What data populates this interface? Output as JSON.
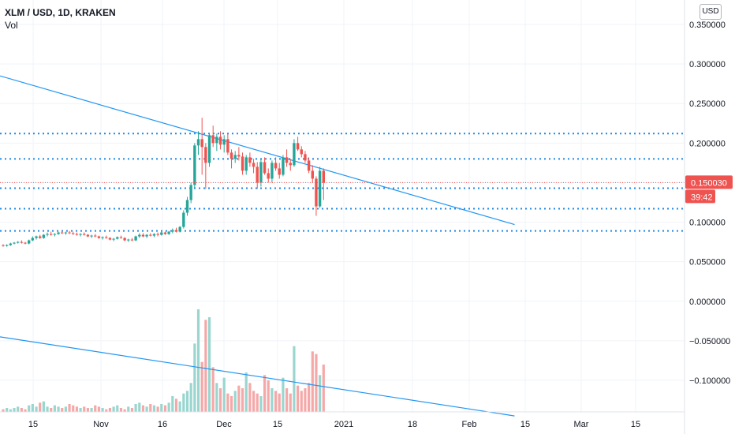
{
  "header": {
    "symbol_line": "XLM / USD, 1D, KRAKEN",
    "volume_label": "Vol",
    "currency": "USD"
  },
  "price_tag": {
    "price": "0.150030",
    "countdown": "39:42",
    "color": "#ef5350"
  },
  "colors": {
    "up": "#26a69a",
    "down": "#ef5350",
    "vol_up": "#9ad6cf",
    "vol_down": "#f4a9a8",
    "trendline": "#2196f3",
    "level_line": "#1e88e5",
    "grid": "#f0f3fa"
  },
  "chart_data": {
    "type": "candlestick",
    "title": "XLM / USD, 1D, KRAKEN",
    "y_axis": {
      "ticks": [
        "0.350000",
        "0.300000",
        "0.250000",
        "0.200000",
        "0.150000",
        "0.100000",
        "0.050000",
        "0.000000",
        "−0.050000",
        "−0.100000"
      ],
      "tick_values": [
        0.35,
        0.3,
        0.25,
        0.2,
        0.15,
        0.1,
        0.05,
        0.0,
        -0.05,
        -0.1
      ],
      "ylim": [
        -0.145,
        0.37
      ]
    },
    "x_axis": {
      "ticks": [
        "15",
        "Nov",
        "16",
        "Dec",
        "15",
        "2021",
        "18",
        "Feb",
        "15",
        "Mar",
        "15"
      ]
    },
    "series": {
      "candles_ohlc": [
        [
          0.071,
          0.072,
          0.069,
          0.07
        ],
        [
          0.07,
          0.072,
          0.069,
          0.071
        ],
        [
          0.071,
          0.074,
          0.07,
          0.073
        ],
        [
          0.073,
          0.075,
          0.072,
          0.074
        ],
        [
          0.074,
          0.076,
          0.073,
          0.075
        ],
        [
          0.075,
          0.077,
          0.073,
          0.074
        ],
        [
          0.074,
          0.075,
          0.072,
          0.073
        ],
        [
          0.073,
          0.078,
          0.072,
          0.077
        ],
        [
          0.077,
          0.082,
          0.076,
          0.08
        ],
        [
          0.08,
          0.083,
          0.078,
          0.082
        ],
        [
          0.082,
          0.084,
          0.079,
          0.08
        ],
        [
          0.08,
          0.085,
          0.079,
          0.084
        ],
        [
          0.084,
          0.087,
          0.082,
          0.085
        ],
        [
          0.085,
          0.088,
          0.083,
          0.084
        ],
        [
          0.084,
          0.086,
          0.082,
          0.085
        ],
        [
          0.085,
          0.088,
          0.084,
          0.087
        ],
        [
          0.087,
          0.089,
          0.085,
          0.086
        ],
        [
          0.086,
          0.088,
          0.084,
          0.087
        ],
        [
          0.087,
          0.089,
          0.085,
          0.086
        ],
        [
          0.086,
          0.088,
          0.084,
          0.085
        ],
        [
          0.085,
          0.087,
          0.083,
          0.084
        ],
        [
          0.084,
          0.086,
          0.082,
          0.085
        ],
        [
          0.085,
          0.087,
          0.083,
          0.084
        ],
        [
          0.084,
          0.085,
          0.081,
          0.082
        ],
        [
          0.082,
          0.084,
          0.08,
          0.083
        ],
        [
          0.083,
          0.085,
          0.081,
          0.082
        ],
        [
          0.082,
          0.083,
          0.079,
          0.08
        ],
        [
          0.08,
          0.082,
          0.078,
          0.081
        ],
        [
          0.081,
          0.083,
          0.079,
          0.08
        ],
        [
          0.08,
          0.081,
          0.077,
          0.078
        ],
        [
          0.078,
          0.08,
          0.076,
          0.079
        ],
        [
          0.079,
          0.082,
          0.078,
          0.081
        ],
        [
          0.081,
          0.083,
          0.079,
          0.08
        ],
        [
          0.08,
          0.081,
          0.076,
          0.077
        ],
        [
          0.077,
          0.079,
          0.075,
          0.078
        ],
        [
          0.078,
          0.08,
          0.076,
          0.077
        ],
        [
          0.077,
          0.083,
          0.076,
          0.082
        ],
        [
          0.082,
          0.086,
          0.08,
          0.084
        ],
        [
          0.084,
          0.086,
          0.081,
          0.082
        ],
        [
          0.082,
          0.085,
          0.08,
          0.084
        ],
        [
          0.084,
          0.086,
          0.082,
          0.083
        ],
        [
          0.083,
          0.086,
          0.081,
          0.085
        ],
        [
          0.085,
          0.087,
          0.082,
          0.084
        ],
        [
          0.084,
          0.088,
          0.083,
          0.087
        ],
        [
          0.087,
          0.088,
          0.084,
          0.085
        ],
        [
          0.085,
          0.089,
          0.084,
          0.088
        ],
        [
          0.088,
          0.092,
          0.086,
          0.09
        ],
        [
          0.09,
          0.093,
          0.087,
          0.088
        ],
        [
          0.088,
          0.095,
          0.087,
          0.094
        ],
        [
          0.094,
          0.115,
          0.092,
          0.112
        ],
        [
          0.112,
          0.132,
          0.108,
          0.128
        ],
        [
          0.128,
          0.15,
          0.124,
          0.147
        ],
        [
          0.147,
          0.2,
          0.143,
          0.197
        ],
        [
          0.197,
          0.215,
          0.185,
          0.205
        ],
        [
          0.205,
          0.232,
          0.16,
          0.195
        ],
        [
          0.195,
          0.2,
          0.142,
          0.175
        ],
        [
          0.175,
          0.212,
          0.17,
          0.21
        ],
        [
          0.21,
          0.222,
          0.195,
          0.2
        ],
        [
          0.2,
          0.212,
          0.19,
          0.208
        ],
        [
          0.208,
          0.215,
          0.192,
          0.198
        ],
        [
          0.198,
          0.21,
          0.188,
          0.205
        ],
        [
          0.205,
          0.212,
          0.185,
          0.188
        ],
        [
          0.188,
          0.192,
          0.168,
          0.18
        ],
        [
          0.18,
          0.19,
          0.175,
          0.185
        ],
        [
          0.185,
          0.195,
          0.178,
          0.183
        ],
        [
          0.183,
          0.188,
          0.16,
          0.165
        ],
        [
          0.165,
          0.185,
          0.16,
          0.182
        ],
        [
          0.182,
          0.188,
          0.17,
          0.175
        ],
        [
          0.175,
          0.18,
          0.162,
          0.17
        ],
        [
          0.17,
          0.176,
          0.142,
          0.15
        ],
        [
          0.15,
          0.18,
          0.145,
          0.176
        ],
        [
          0.176,
          0.182,
          0.16,
          0.162
        ],
        [
          0.162,
          0.168,
          0.15,
          0.155
        ],
        [
          0.155,
          0.178,
          0.15,
          0.175
        ],
        [
          0.175,
          0.182,
          0.165,
          0.168
        ],
        [
          0.168,
          0.175,
          0.155,
          0.16
        ],
        [
          0.16,
          0.185,
          0.158,
          0.182
        ],
        [
          0.182,
          0.192,
          0.17,
          0.175
        ],
        [
          0.175,
          0.18,
          0.165,
          0.172
        ],
        [
          0.172,
          0.205,
          0.17,
          0.2
        ],
        [
          0.2,
          0.208,
          0.19,
          0.192
        ],
        [
          0.192,
          0.196,
          0.182,
          0.186
        ],
        [
          0.186,
          0.19,
          0.175,
          0.178
        ],
        [
          0.178,
          0.182,
          0.162,
          0.165
        ],
        [
          0.165,
          0.172,
          0.15,
          0.155
        ],
        [
          0.155,
          0.158,
          0.108,
          0.12
        ],
        [
          0.12,
          0.17,
          0.118,
          0.165
        ],
        [
          0.165,
          0.168,
          0.128,
          0.15
        ]
      ],
      "volumes": [
        2,
        3,
        2,
        3,
        4,
        3,
        2,
        5,
        6,
        4,
        7,
        8,
        4,
        3,
        5,
        4,
        3,
        4,
        6,
        5,
        4,
        3,
        4,
        3,
        3,
        5,
        4,
        3,
        2,
        3,
        4,
        5,
        3,
        2,
        4,
        3,
        6,
        7,
        5,
        4,
        6,
        5,
        4,
        6,
        5,
        7,
        12,
        10,
        8,
        14,
        16,
        22,
        52,
        78,
        38,
        70,
        72,
        34,
        22,
        18,
        26,
        14,
        12,
        16,
        20,
        18,
        30,
        22,
        16,
        14,
        12,
        28,
        24,
        18,
        16,
        14,
        26,
        18,
        14,
        50,
        20,
        16,
        18,
        22,
        46,
        44,
        28,
        36
      ]
    },
    "trendlines": [
      {
        "from_index": 0,
        "from_value": 0.285,
        "to_index": 138,
        "to_value": 0.097
      },
      {
        "from_index": 0,
        "from_value": -0.045,
        "to_index": 138,
        "to_value": -0.145
      }
    ],
    "horizontal_levels": [
      0.212,
      0.18,
      0.143,
      0.117,
      0.089
    ],
    "last_price": 0.15003,
    "last_price_label": "0.150030",
    "last_price_countdown": "39:42"
  }
}
